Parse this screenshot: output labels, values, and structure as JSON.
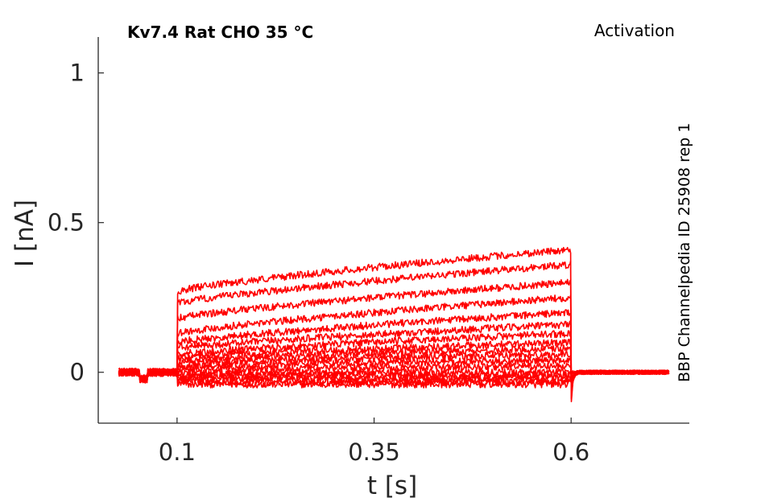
{
  "chart_data": {
    "type": "line",
    "title": "Kv7.4  Rat  CHO  35 °C",
    "protocol": "Activation",
    "side_label": "BBP Channelpedia ID 25908 rep 1",
    "xlabel": "t [s]",
    "ylabel": "I [nA]",
    "xlim": [
      0.0,
      0.75
    ],
    "ylim": [
      -0.17,
      1.12
    ],
    "xticks": [
      0.1,
      0.35,
      0.6
    ],
    "xtick_labels": [
      "0.1",
      "0.35",
      "0.6"
    ],
    "yticks": [
      0,
      0.5,
      1
    ],
    "ytick_labels": [
      "0",
      "0.5",
      "1"
    ],
    "grid": false,
    "line_color": "#ff0000",
    "step": {
      "start": 0.1,
      "end": 0.6
    },
    "t_range": [
      0.026,
      0.724
    ],
    "series": [
      {
        "onset": -0.04,
        "end": -0.04
      },
      {
        "onset": -0.03,
        "end": -0.03
      },
      {
        "onset": -0.02,
        "end": -0.02
      },
      {
        "onset": -0.01,
        "end": -0.01
      },
      {
        "onset": 0.0,
        "end": 0.0
      },
      {
        "onset": 0.01,
        "end": 0.02
      },
      {
        "onset": 0.02,
        "end": 0.04
      },
      {
        "onset": 0.03,
        "end": 0.06
      },
      {
        "onset": 0.04,
        "end": 0.08
      },
      {
        "onset": 0.05,
        "end": 0.1
      },
      {
        "onset": 0.06,
        "end": 0.13
      },
      {
        "onset": 0.08,
        "end": 0.16
      },
      {
        "onset": 0.1,
        "end": 0.2
      },
      {
        "onset": 0.13,
        "end": 0.25
      },
      {
        "onset": 0.18,
        "end": 0.3
      },
      {
        "onset": 0.23,
        "end": 0.36
      },
      {
        "onset": 0.27,
        "end": 0.41
      }
    ]
  }
}
